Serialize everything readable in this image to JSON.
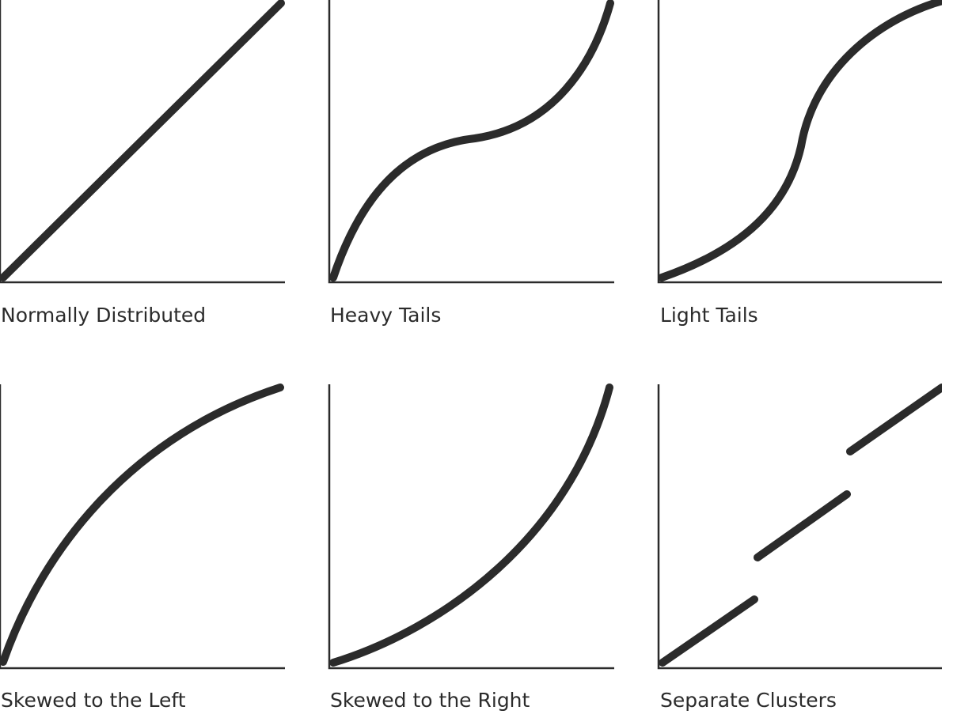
{
  "panels": [
    {
      "caption": "Normally Distributed"
    },
    {
      "caption": "Heavy Tails"
    },
    {
      "caption": "Light Tails"
    },
    {
      "caption": "Skewed to the Left"
    },
    {
      "caption": "Skewed to the Right"
    },
    {
      "caption": "Separate Clusters"
    }
  ],
  "colors": {
    "ink": "#2b2b2b",
    "background": "#ffffff"
  }
}
